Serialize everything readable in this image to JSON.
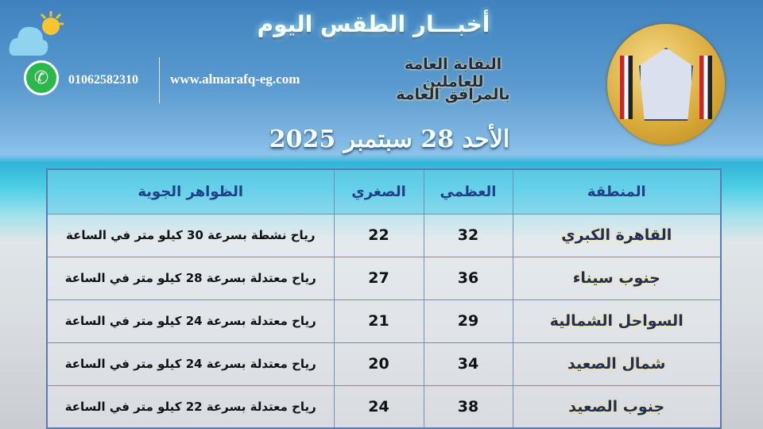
{
  "title": "أخبـــار الطقس اليوم",
  "organization": {
    "line1": "النقابة العامة للعاملين",
    "line2": "بالمرافق العامة"
  },
  "date": "الأحد 28 سبتمبر 2025",
  "contact": {
    "website": "www.almarafq-eg.com",
    "phone": "01062582310",
    "phone_icon": "whatsapp-icon"
  },
  "weather_icon": "sun-behind-cloud-icon",
  "table": {
    "headers": [
      "المنطقة",
      "العظمي",
      "الصغري",
      "الظواهر الجوية"
    ],
    "rows": [
      {
        "region": "القاهرة الكبري",
        "max": "32",
        "min": "22",
        "desc": "رياح نشطة بسرعة 30 كيلو متر في الساعة"
      },
      {
        "region": "جنوب سيناء",
        "max": "36",
        "min": "27",
        "desc": "رياح معتدلة بسرعة 28 كيلو متر في الساعة"
      },
      {
        "region": "السواحل الشمالية",
        "max": "29",
        "min": "21",
        "desc": "رياح معتدلة بسرعة 24 كيلو متر في الساعة"
      },
      {
        "region": "شمال الصعيد",
        "max": "34",
        "min": "20",
        "desc": "رياح معتدلة بسرعة 24 كيلو متر في الساعة"
      },
      {
        "region": "جنوب الصعيد",
        "max": "38",
        "min": "24",
        "desc": "رياح معتدلة بسرعة 22 كيلو متر في الساعة"
      }
    ]
  }
}
